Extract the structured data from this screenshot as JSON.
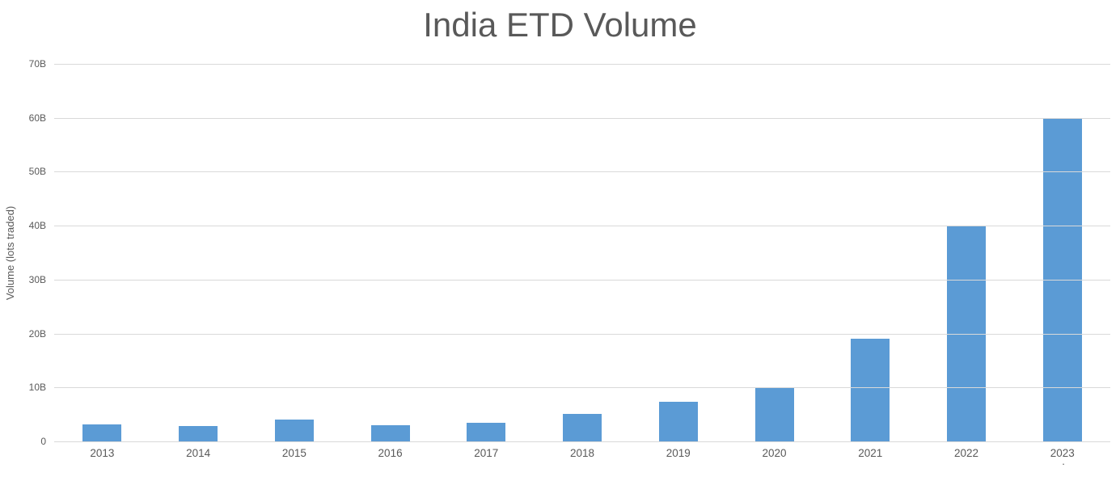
{
  "chart": {
    "title": "India ETD Volume",
    "y_axis_title": "Volume (lots traded)",
    "footnote": "."
  },
  "chart_data": {
    "type": "bar",
    "title": "India ETD Volume",
    "xlabel": "",
    "ylabel": "Volume (lots traded)",
    "categories": [
      "2013",
      "2014",
      "2015",
      "2016",
      "2017",
      "2018",
      "2019",
      "2020",
      "2021",
      "2022",
      "2023"
    ],
    "values": [
      3.2,
      2.9,
      4.0,
      3.0,
      3.5,
      5.1,
      7.4,
      10.0,
      19.0,
      40.0,
      60.0
    ],
    "values_unit": "billions of lots traded",
    "ylim": [
      0,
      70
    ],
    "ytick_step": 10,
    "ytick_labels": [
      "0",
      "10B",
      "20B",
      "30B",
      "40B",
      "50B",
      "60B",
      "70B"
    ],
    "grid": "horizontal",
    "legend_position": "none",
    "colors": {
      "bar": "#5b9bd5",
      "gridline": "#d9d9d9",
      "text": "#595959",
      "background": "#ffffff"
    }
  }
}
